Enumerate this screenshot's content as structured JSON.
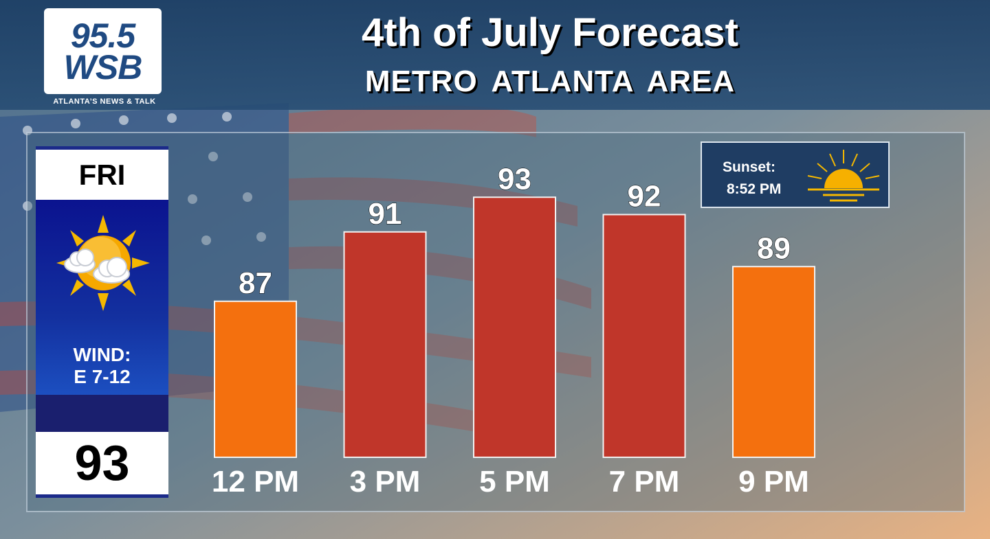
{
  "header": {
    "logo_number": "95.5",
    "logo_call": "WSB",
    "tagline": "ATLANTA’S NEWS & TALK",
    "title": "4th of July Forecast",
    "subtitle": "METRO ATLANTA AREA"
  },
  "day_card": {
    "day": "FRI",
    "icon": "partly-sunny-icon",
    "wind_label": "WIND:",
    "wind_value": "E 7-12",
    "high_temp": "93"
  },
  "sunset": {
    "label": "Sunset:",
    "time": "8:52 PM",
    "icon": "sunset-icon"
  },
  "colors": {
    "warm_bar": "#f4700e",
    "hot_bar": "#c0362a",
    "header_bg": "#1f3e66",
    "card_blue": "#0b138f"
  },
  "chart_data": {
    "type": "bar",
    "categories": [
      "12 PM",
      "3 PM",
      "5 PM",
      "7 PM",
      "9 PM"
    ],
    "values": [
      87,
      91,
      93,
      92,
      89
    ],
    "bar_colors": [
      "#f4700e",
      "#c0362a",
      "#c0362a",
      "#c0362a",
      "#f4700e"
    ],
    "data_labels": [
      "87",
      "91",
      "93",
      "92",
      "89"
    ],
    "ylim": [
      78,
      94
    ],
    "grid": false,
    "legend": "none"
  }
}
